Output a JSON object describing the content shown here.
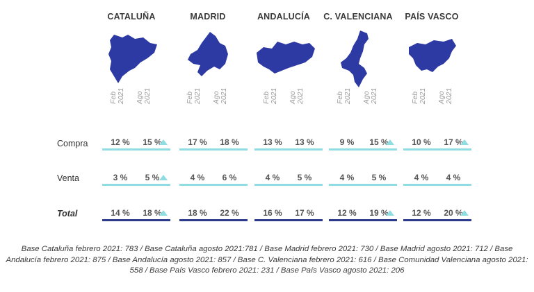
{
  "regions": [
    {
      "name": "CATALUÑA",
      "map_icon": "cataluna-map-icon"
    },
    {
      "name": "MADRID",
      "map_icon": "madrid-map-icon"
    },
    {
      "name": "ANDALUCÍA",
      "map_icon": "andalucia-map-icon"
    },
    {
      "name": "C. VALENCIANA",
      "map_icon": "valenciana-map-icon"
    },
    {
      "name": "PAÍS VASCO",
      "map_icon": "pais-vasco-map-icon"
    }
  ],
  "periods": [
    {
      "line1": "Feb",
      "line2": "2021"
    },
    {
      "line1": "Ago",
      "line2": "2021"
    }
  ],
  "rows": [
    {
      "label": "Compra",
      "style": "light"
    },
    {
      "label": "Venta",
      "style": "light"
    },
    {
      "label": "Total",
      "style": "dark"
    }
  ],
  "colors": {
    "map": "#2e3aa3",
    "accent": "#8fdce3",
    "total_bar": "#2c3a8e"
  },
  "chart_data": {
    "type": "table",
    "categories": [
      "CATALUÑA",
      "MADRID",
      "ANDALUCÍA",
      "C. VALENCIANA",
      "PAÍS VASCO"
    ],
    "periods": [
      "Feb 2021",
      "Ago 2021"
    ],
    "unit": "%",
    "series": [
      {
        "name": "Compra",
        "feb": [
          "12 %",
          "17 %",
          "13 %",
          "9 %",
          "10 %"
        ],
        "ago": [
          "15 %",
          "18 %",
          "13 %",
          "15 %",
          "17 %"
        ],
        "increase": [
          true,
          false,
          false,
          true,
          true
        ]
      },
      {
        "name": "Venta",
        "feb": [
          "3 %",
          "4 %",
          "4 %",
          "4 %",
          "4 %"
        ],
        "ago": [
          "5 %",
          "6 %",
          "5 %",
          "5 %",
          "4 %"
        ],
        "increase": [
          true,
          false,
          false,
          false,
          false
        ]
      },
      {
        "name": "Total",
        "feb": [
          "14 %",
          "18 %",
          "16 %",
          "12 %",
          "12 %"
        ],
        "ago": [
          "18 %",
          "22 %",
          "17 %",
          "19 %",
          "20 %"
        ],
        "increase": [
          true,
          false,
          false,
          true,
          true
        ]
      }
    ]
  },
  "footnote": "Base Cataluña febrero 2021: 783 / Base Cataluña agosto 2021:781 / Base Madrid febrero 2021: 730 / Base Madrid agosto 2021: 712 / Base Andalucía febrero 2021: 875 / Base Andalucía agosto 2021: 857 / Base C. Valenciana febrero 2021: 616 / Base Comunidad Valenciana agosto 2021: 558 / Base País Vasco febrero 2021: 231 / Base País Vasco agosto 2021: 206"
}
